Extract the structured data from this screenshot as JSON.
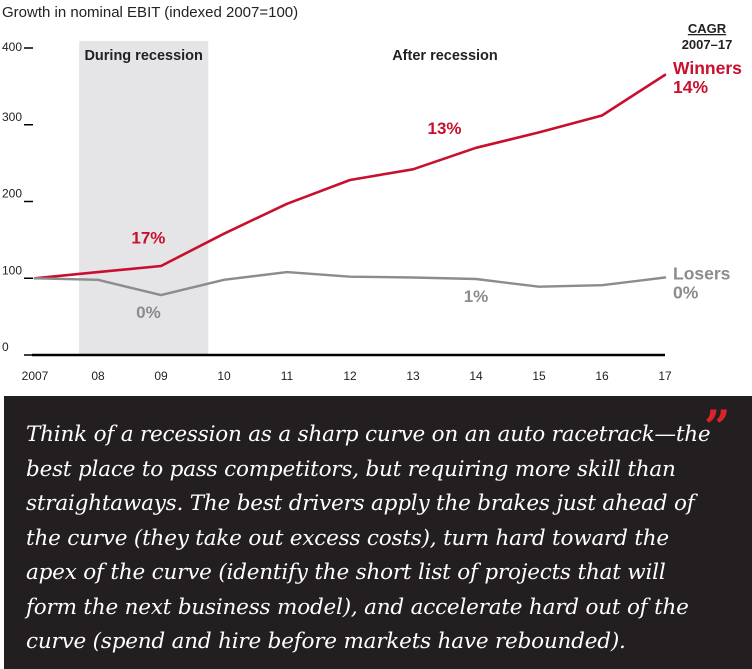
{
  "chart_data": {
    "type": "line",
    "title": "Growth in nominal EBIT (indexed 2007=100)",
    "x": [
      2007,
      2008,
      2009,
      2010,
      2011,
      2012,
      2013,
      2014,
      2015,
      2016,
      2017
    ],
    "x_tick_labels": [
      "2007",
      "08",
      "09",
      "10",
      "11",
      "12",
      "13",
      "14",
      "15",
      "16",
      "17"
    ],
    "ylim": [
      0,
      400
    ],
    "y_ticks": [
      0,
      100,
      200,
      300,
      400
    ],
    "y_tick_labels": [
      "0",
      "100",
      "200",
      "300",
      "400"
    ],
    "grid": false,
    "series": [
      {
        "name": "Winners",
        "cagr": "14%",
        "color": "#c8102e",
        "values": [
          100,
          108,
          116,
          158,
          197,
          228,
          242,
          270,
          290,
          312,
          365
        ]
      },
      {
        "name": "Losers",
        "cagr": "0%",
        "color": "#8c8c8c",
        "values": [
          100,
          98,
          78,
          98,
          108,
          102,
          101,
          99,
          89,
          91,
          101
        ]
      }
    ],
    "recession_band": {
      "from": 2007.7,
      "to": 2009.75,
      "label": "During recession",
      "color": "#e5e5e8"
    },
    "after_label": "After recession",
    "cagr_header": [
      "CAGR",
      "2007–17"
    ],
    "annotations": [
      {
        "text": "17%",
        "x": 2008.8,
        "y": 145,
        "color": "#c8102e"
      },
      {
        "text": "0%",
        "x": 2008.8,
        "y": 48,
        "color": "#8c8c8c"
      },
      {
        "text": "13%",
        "x": 2013.5,
        "y": 288,
        "color": "#c8102e"
      },
      {
        "text": "1%",
        "x": 2014.0,
        "y": 69,
        "color": "#8c8c8c"
      }
    ]
  },
  "quote": {
    "text": "Think of a recession as a sharp curve on an auto racetrack—the best place to pass competitors, but requiring more skill than straightaways. The best drivers apply the brakes just ahead of the curve (they take out excess costs), turn hard toward the apex of the curve (identify the short list of projects that will form the next business model), and accelerate hard out of the curve (spend and hire before markets have rebounded).",
    "mark": "”",
    "mark_color": "#d8252b",
    "background": "#231f20"
  }
}
